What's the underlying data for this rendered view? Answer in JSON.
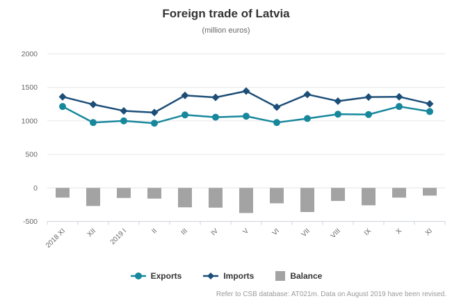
{
  "header": {
    "title": "Foreign trade of Latvia",
    "subtitle": "(million euros)"
  },
  "footer": {
    "note": "Refer to CSB database: AT021m. Data on August 2019 have been revised."
  },
  "colors": {
    "exports": "#17879c",
    "imports": "#1c4e78",
    "balance": "#a3a3a3",
    "gridline": "#e6e6e6",
    "axis_line": "#ccd1d9",
    "axis_label": "#666666"
  },
  "chart_data": {
    "type": "combo",
    "title": "Foreign trade of Latvia",
    "subtitle": "(million euros)",
    "categories": [
      "2018 XI",
      "XII",
      "2019 I",
      "II",
      "III",
      "IV",
      "V",
      "VI",
      "VII",
      "VIII",
      "IX",
      "X",
      "XI"
    ],
    "series": [
      {
        "name": "Exports",
        "kind": "line",
        "marker": "circle",
        "color": "#17879c",
        "values": [
          1215,
          975,
          1000,
          965,
          1090,
          1055,
          1070,
          975,
          1035,
          1100,
          1095,
          1215,
          1140
        ]
      },
      {
        "name": "Imports",
        "kind": "line",
        "marker": "diamond",
        "color": "#1c4e78",
        "values": [
          1360,
          1245,
          1150,
          1125,
          1380,
          1350,
          1445,
          1205,
          1395,
          1295,
          1355,
          1360,
          1255
        ]
      },
      {
        "name": "Balance",
        "kind": "bar",
        "color": "#a3a3a3",
        "values": [
          -145,
          -270,
          -150,
          -160,
          -290,
          -295,
          -375,
          -230,
          -360,
          -195,
          -260,
          -145,
          -115
        ]
      }
    ],
    "xlabel": "",
    "ylabel": "",
    "ylim": [
      -500,
      2000
    ],
    "yticks": [
      2000,
      1500,
      1000,
      500,
      0,
      -500
    ],
    "grid": true,
    "legend_position": "bottom"
  }
}
